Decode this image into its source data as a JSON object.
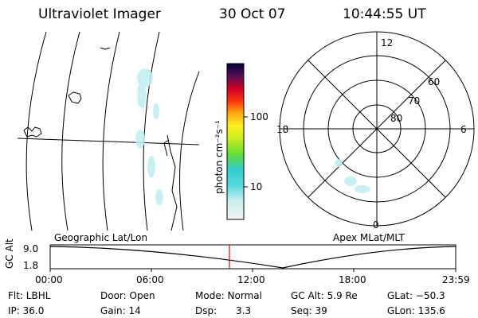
{
  "header": {
    "instrument": "Ultraviolet Imager",
    "date": "30 Oct 07",
    "time": "10:44:55 UT"
  },
  "colorbar": {
    "unit_label": "photon cm⁻²s⁻¹",
    "ticks": [
      "100",
      "10"
    ]
  },
  "polar_plot": {
    "mlt_labels": [
      "12",
      "18",
      "6",
      "0"
    ],
    "lat_labels": [
      "60",
      "70",
      "80"
    ]
  },
  "panel_labels": {
    "geographic": "Geographic Lat/Lon",
    "apex": "Apex MLat/MLT"
  },
  "altitude_plot": {
    "ylabel": "GC Alt",
    "yticks": [
      "9.0",
      "1.8"
    ],
    "xticks": [
      "00:00",
      "06:00",
      "12:00",
      "18:00",
      "23:59"
    ],
    "marker_color": "#e00000"
  },
  "status": {
    "row1": [
      "Flt: LBHL",
      "Door: Open",
      "Mode: Normal",
      "GC Alt: 5.9 Re",
      "GLat: −50.3"
    ],
    "row2": [
      "IP: 36.0",
      "Gain: 14",
      "Dsp:",
      "3.3",
      "Seq: 39",
      "GLon: 135.6"
    ]
  }
}
